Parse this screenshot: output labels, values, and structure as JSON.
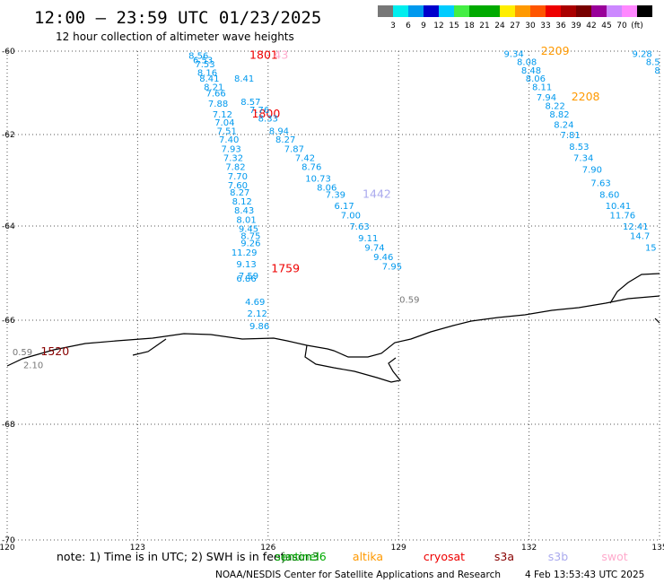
{
  "header": {
    "title": "12:00 – 23:59 UTC 01/23/2025",
    "subtitle": "12 hour collection of altimeter wave heights"
  },
  "colorbar": {
    "colors": [
      "#777777",
      "#00eeee",
      "#0099ee",
      "#0000cc",
      "#00ccff",
      "#44ee44",
      "#00aa00",
      "#00aa00",
      "#ffee00",
      "#ff9900",
      "#ff5500",
      "#ee0000",
      "#aa0000",
      "#770000",
      "#990099",
      "#cc88ff",
      "#ff88ff",
      "#000000"
    ],
    "labels": [
      "3",
      "6",
      "9",
      "12",
      "15",
      "18",
      "21",
      "24",
      "27",
      "30",
      "33",
      "36",
      "39",
      "42",
      "45",
      "70",
      "(ft)"
    ]
  },
  "footer": {
    "note_prefix": "note: 1) Time is in UTC; 2) SWH is in feet",
    "credit": "NOAA/NESDIS Center for Satellite Applications and Research",
    "date": "4 Feb 13:53:43 UTC 2025"
  },
  "legend": [
    {
      "name": "jason3",
      "color": "#006600"
    },
    {
      "name": "sentinel6",
      "color": "#00aa00"
    },
    {
      "name": "altika",
      "color": "#ff9900"
    },
    {
      "name": "cryosat",
      "color": "#ee0000"
    },
    {
      "name": "s3a",
      "color": "#880000"
    },
    {
      "name": "s3b",
      "color": "#aaaaee"
    },
    {
      "name": "swot",
      "color": "#ffaacc"
    }
  ],
  "chart_data": {
    "type": "scatter",
    "title": "12:00 – 23:59 UTC 01/23/2025",
    "xlim": [
      120,
      135
    ],
    "ylim": [
      -70,
      -60
    ],
    "x_ticks": [
      "120",
      "123",
      "126",
      "129",
      "132",
      "135"
    ],
    "y_ticks": [
      "-60",
      "-62",
      "-64",
      "-66",
      "-68",
      "-70"
    ],
    "grid": true,
    "series": [
      {
        "name": "cryosat",
        "color": "#ee0000",
        "points": [
          {
            "x": 125.9,
            "y": -60.1,
            "label": "1801"
          },
          {
            "x": 125.95,
            "y": -61.5,
            "label": "1800"
          },
          {
            "x": 126.4,
            "y": -64.9,
            "label": "1759"
          }
        ]
      },
      {
        "name": "swot",
        "color": "#ffaacc",
        "points": [
          {
            "x": 126.3,
            "y": -60.1,
            "label": "43"
          }
        ]
      },
      {
        "name": "s3b",
        "color": "#aaaaee",
        "points": [
          {
            "x": 128.5,
            "y": -63.3,
            "label": "1442"
          }
        ]
      },
      {
        "name": "altika",
        "color": "#ff9900",
        "points": [
          {
            "x": 132.6,
            "y": -60.0,
            "label": "2209"
          },
          {
            "x": 133.3,
            "y": -61.1,
            "label": "2208"
          }
        ]
      },
      {
        "name": "s3a",
        "color": "#880000",
        "points": [
          {
            "x": 121.1,
            "y": -66.6,
            "label": "1520"
          }
        ]
      },
      {
        "name": "track_a",
        "color": "#0099ee",
        "points": [
          {
            "x": 124.4,
            "y": -60.1,
            "label": "8.56"
          },
          {
            "x": 124.5,
            "y": -60.2,
            "label": "6.53"
          },
          {
            "x": 124.55,
            "y": -60.3,
            "label": "7.53"
          },
          {
            "x": 124.6,
            "y": -60.5,
            "label": "8.16"
          },
          {
            "x": 124.65,
            "y": -60.65,
            "label": "8.41"
          },
          {
            "x": 124.75,
            "y": -60.85,
            "label": "8.21"
          },
          {
            "x": 124.8,
            "y": -61.0,
            "label": "7.66"
          },
          {
            "x": 124.85,
            "y": -61.25,
            "label": "7.88"
          },
          {
            "x": 124.95,
            "y": -61.5,
            "label": "7.12"
          },
          {
            "x": 125.0,
            "y": -61.7,
            "label": "7.04"
          },
          {
            "x": 125.05,
            "y": -61.9,
            "label": "7.51"
          },
          {
            "x": 125.1,
            "y": -62.1,
            "label": "7.40"
          },
          {
            "x": 125.15,
            "y": -62.3,
            "label": "7.93"
          },
          {
            "x": 125.2,
            "y": -62.5,
            "label": "7.32"
          },
          {
            "x": 125.25,
            "y": -62.7,
            "label": "7.82"
          },
          {
            "x": 125.3,
            "y": -62.9,
            "label": "7.70"
          },
          {
            "x": 125.3,
            "y": -63.1,
            "label": "7.60"
          },
          {
            "x": 125.35,
            "y": -63.25,
            "label": "8.27"
          },
          {
            "x": 125.4,
            "y": -63.45,
            "label": "8.12"
          },
          {
            "x": 125.45,
            "y": -63.65,
            "label": "8.43"
          },
          {
            "x": 125.5,
            "y": -63.85,
            "label": "8.01"
          },
          {
            "x": 125.55,
            "y": -64.05,
            "label": "9.45"
          },
          {
            "x": 125.6,
            "y": -64.2,
            "label": "8.75"
          },
          {
            "x": 125.6,
            "y": -64.35,
            "label": "9.26"
          },
          {
            "x": 125.45,
            "y": -64.55,
            "label": "11.29"
          },
          {
            "x": 125.5,
            "y": -64.8,
            "label": "9.13"
          },
          {
            "x": 125.55,
            "y": -65.05,
            "label": "7.59"
          },
          {
            "x": 125.5,
            "y": -65.1,
            "label": "6.86"
          },
          {
            "x": 125.7,
            "y": -65.6,
            "label": "4.69"
          },
          {
            "x": 125.75,
            "y": -65.85,
            "label": "2.12"
          },
          {
            "x": 125.8,
            "y": -66.1,
            "label": "9.86"
          }
        ]
      },
      {
        "name": "track_b",
        "color": "#0099ee",
        "points": [
          {
            "x": 125.45,
            "y": -60.65,
            "label": "8.41"
          },
          {
            "x": 125.6,
            "y": -61.2,
            "label": "8.57"
          },
          {
            "x": 125.8,
            "y": -61.4,
            "label": "7.76"
          },
          {
            "x": 126.0,
            "y": -61.6,
            "label": "8.33"
          },
          {
            "x": 126.25,
            "y": -61.9,
            "label": "8.94"
          },
          {
            "x": 126.4,
            "y": -62.1,
            "label": "8.27"
          },
          {
            "x": 126.6,
            "y": -62.3,
            "label": "7.87"
          },
          {
            "x": 126.85,
            "y": -62.5,
            "label": "7.42"
          },
          {
            "x": 127.0,
            "y": -62.7,
            "label": "8.76"
          },
          {
            "x": 127.15,
            "y": -62.95,
            "label": "10.73"
          },
          {
            "x": 127.35,
            "y": -63.15,
            "label": "8.06"
          },
          {
            "x": 127.55,
            "y": -63.3,
            "label": "7.39"
          },
          {
            "x": 127.75,
            "y": -63.55,
            "label": "6.17"
          },
          {
            "x": 127.9,
            "y": -63.75,
            "label": "7.00"
          },
          {
            "x": 128.1,
            "y": -64.0,
            "label": "7.63"
          },
          {
            "x": 128.3,
            "y": -64.25,
            "label": "9.11"
          },
          {
            "x": 128.45,
            "y": -64.45,
            "label": "9.74"
          },
          {
            "x": 128.65,
            "y": -64.65,
            "label": "9.46"
          },
          {
            "x": 128.85,
            "y": -64.85,
            "label": "7.95"
          }
        ]
      },
      {
        "name": "track_c",
        "color": "#0099ee",
        "points": [
          {
            "x": 131.65,
            "y": -60.05,
            "label": "9.34"
          },
          {
            "x": 131.95,
            "y": -60.25,
            "label": "8.08"
          },
          {
            "x": 132.05,
            "y": -60.45,
            "label": "8.48"
          },
          {
            "x": 132.15,
            "y": -60.65,
            "label": "8.06"
          },
          {
            "x": 132.3,
            "y": -60.85,
            "label": "8.11"
          },
          {
            "x": 132.4,
            "y": -61.1,
            "label": "7.94"
          },
          {
            "x": 132.6,
            "y": -61.3,
            "label": "8.22"
          },
          {
            "x": 132.7,
            "y": -61.5,
            "label": "8.82"
          },
          {
            "x": 132.8,
            "y": -61.75,
            "label": "8.24"
          },
          {
            "x": 132.95,
            "y": -62.0,
            "label": "7.81"
          },
          {
            "x": 133.15,
            "y": -62.25,
            "label": "8.53"
          },
          {
            "x": 133.25,
            "y": -62.5,
            "label": "7.34"
          },
          {
            "x": 133.45,
            "y": -62.75,
            "label": "7.90"
          },
          {
            "x": 133.65,
            "y": -63.05,
            "label": "7.63"
          },
          {
            "x": 133.85,
            "y": -63.3,
            "label": "8.60"
          },
          {
            "x": 134.05,
            "y": -63.55,
            "label": "10.41"
          },
          {
            "x": 134.15,
            "y": -63.75,
            "label": "11.76"
          },
          {
            "x": 134.45,
            "y": -64.0,
            "label": "12.41"
          },
          {
            "x": 134.55,
            "y": -64.2,
            "label": "14.7"
          },
          {
            "x": 134.8,
            "y": -64.45,
            "label": "15"
          }
        ]
      },
      {
        "name": "track_d",
        "color": "#0099ee",
        "points": [
          {
            "x": 134.6,
            "y": -60.05,
            "label": "9.28"
          },
          {
            "x": 134.85,
            "y": -60.25,
            "label": "8.5"
          },
          {
            "x": 134.95,
            "y": -60.45,
            "label": "8"
          }
        ]
      },
      {
        "name": "low_values",
        "color": "#777777",
        "points": [
          {
            "x": 129.25,
            "y": -65.55,
            "label": "0.59"
          },
          {
            "x": 120.35,
            "y": -66.6,
            "label": "0.59"
          },
          {
            "x": 120.6,
            "y": -66.85,
            "label": "2.10"
          }
        ]
      }
    ]
  }
}
